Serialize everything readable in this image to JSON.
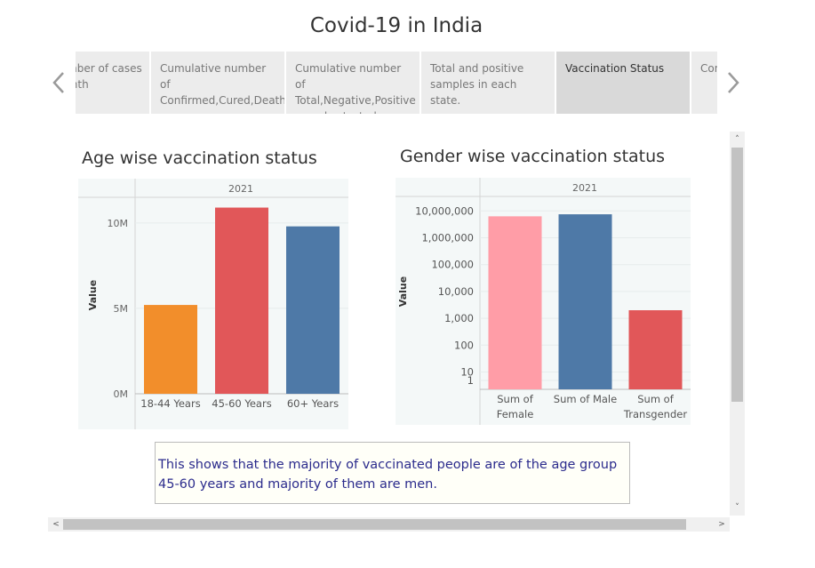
{
  "story": {
    "title": "Covid-19 in India",
    "points": [
      {
        "label": "Total number of cases each month",
        "active": false
      },
      {
        "label": "Cumulative number of Confirmed,Cured,Death cases.",
        "active": false
      },
      {
        "label": "Cumulative number of Total,Negative,Positive samples tested .",
        "active": false
      },
      {
        "label": "Total and positive samples in each state.",
        "active": false
      },
      {
        "label": "Vaccination Status",
        "active": true
      },
      {
        "label": "Conclusion",
        "active": false
      }
    ],
    "prev_icon": "chevron-left-icon",
    "next_icon": "chevron-right-icon"
  },
  "age_sheet": {
    "title": "Age wise vaccination status"
  },
  "gender_sheet": {
    "title": "Gender wise vaccination status"
  },
  "chart_data": [
    {
      "type": "bar",
      "column_header": "2021",
      "ylabel": "Value",
      "categories": [
        "18-44 Years",
        "45-60 Years",
        "60+ Years"
      ],
      "values": [
        5200000,
        10900000,
        9800000
      ],
      "colors": [
        "#f28e2b",
        "#e15759",
        "#4e79a7"
      ],
      "yticks": [
        "0M",
        "5M",
        "10M"
      ],
      "ytick_values": [
        0,
        5000000,
        10000000
      ],
      "ylim": [
        0,
        11500000
      ]
    },
    {
      "type": "bar",
      "column_header": "2021",
      "ylabel": "Value",
      "scale": "log",
      "categories": [
        "Sum of Female",
        "Sum of Male",
        "Sum of Transgender"
      ],
      "values": [
        6300000,
        7500000,
        2000
      ],
      "colors": [
        "#ff9da7",
        "#4e79a7",
        "#e15759"
      ],
      "yticks": [
        "1",
        "10",
        "100",
        "1,000",
        "10,000",
        "100,000",
        "1,000,000",
        "10,000,000"
      ],
      "ytick_values": [
        1,
        10,
        100,
        1000,
        10000,
        100000,
        1000000,
        10000000
      ]
    }
  ],
  "note": {
    "text": "This shows that the majority of vaccinated people are of the age group 45-60 years and majority of them are men."
  },
  "scrollbars": {
    "up_glyph": "˄",
    "down_glyph": "˅",
    "left_glyph": "<",
    "right_glyph": ">"
  }
}
